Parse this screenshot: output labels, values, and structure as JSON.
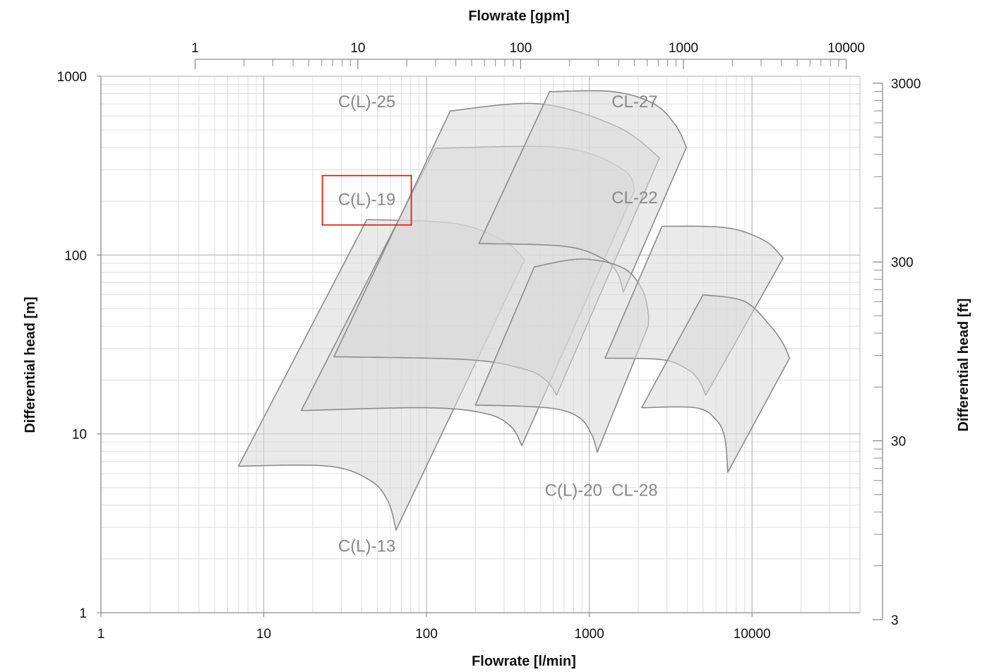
{
  "chart_data": {
    "type": "area",
    "title": "",
    "xlabel": "Flowrate [l/min]",
    "ylabel": "Differential head [m]",
    "x2label": "Flowrate [gpm]",
    "y2label": "Differential head [ft]",
    "xscale": "log",
    "yscale": "log",
    "xlim": [
      1,
      46000
    ],
    "ylim": [
      1,
      1000
    ],
    "x2lim": [
      0.264,
      12150
    ],
    "y2lim": [
      3.28,
      3281
    ],
    "grid": true,
    "x_ticks": [
      1,
      10,
      100,
      1000,
      10000
    ],
    "x_tick_labels": [
      "1",
      "10",
      "100",
      "1000",
      "10000"
    ],
    "y_ticks": [
      1,
      10,
      100,
      1000
    ],
    "y_tick_labels": [
      "1",
      "10",
      "100",
      "1000"
    ],
    "x2_ticks": [
      1,
      10,
      100,
      1000,
      10000
    ],
    "x2_tick_labels": [
      "1",
      "10",
      "100",
      "1000",
      "10000"
    ],
    "y2_ticks": [
      3,
      30,
      300,
      3000
    ],
    "y2_tick_labels": [
      "3",
      "30",
      "300",
      "3000"
    ],
    "fill_color": "#d9d9d9",
    "stroke_color": "#8c8c8c",
    "highlight_color": "#e02020",
    "series": [
      {
        "name": "C(L)-13",
        "label_at": [
          43,
          2.2
        ],
        "curves": [
          [
            [
              7,
              6.6
            ],
            [
              43,
              158
            ]
          ],
          [
            [
              43,
              158
            ],
            [
              150,
              150
            ],
            [
              300,
              120
            ],
            [
              400,
              94
            ]
          ],
          [
            [
              400,
              94
            ],
            [
              65,
              2.9
            ]
          ],
          [
            [
              7,
              6.6
            ],
            [
              25,
              6.6
            ],
            [
              45,
              5.5
            ],
            [
              58,
              4.2
            ],
            [
              65,
              2.9
            ]
          ]
        ]
      },
      {
        "name": "C(L)-19",
        "label_at": [
          43,
          190
        ],
        "highlight": true,
        "curves": [
          [
            [
              17,
              13.5
            ],
            [
              113,
              395
            ]
          ],
          [
            [
              113,
              395
            ],
            [
              500,
              405
            ],
            [
              1000,
              370
            ],
            [
              1700,
              290
            ],
            [
              1900,
              230
            ]
          ],
          [
            [
              1900,
              230
            ],
            [
              385,
              8.6
            ]
          ],
          [
            [
              17,
              13.5
            ],
            [
              100,
              14
            ],
            [
              230,
              13
            ],
            [
              330,
              11
            ],
            [
              385,
              8.6
            ]
          ]
        ]
      },
      {
        "name": "C(L)-25",
        "label_at": [
          43,
          670
        ],
        "curves": [
          [
            [
              27,
              27
            ],
            [
              140,
              640
            ]
          ],
          [
            [
              140,
              640
            ],
            [
              500,
              700
            ],
            [
              1500,
              520
            ],
            [
              2700,
              350
            ]
          ],
          [
            [
              2700,
              350
            ],
            [
              630,
              16.5
            ]
          ],
          [
            [
              27,
              27
            ],
            [
              180,
              26
            ],
            [
              400,
              23
            ],
            [
              540,
              20
            ],
            [
              630,
              16.5
            ]
          ]
        ]
      },
      {
        "name": "CL-27",
        "label_at": [
          1900,
          670
        ],
        "curves": [
          [
            [
              210,
              116
            ],
            [
              570,
              820
            ]
          ],
          [
            [
              570,
              820
            ],
            [
              1400,
              820
            ],
            [
              2500,
              700
            ],
            [
              3400,
              530
            ],
            [
              3950,
              400
            ]
          ],
          [
            [
              3950,
              400
            ],
            [
              1620,
              62
            ]
          ],
          [
            [
              210,
              116
            ],
            [
              700,
              112
            ],
            [
              1200,
              96
            ],
            [
              1480,
              80
            ],
            [
              1620,
              62
            ]
          ]
        ]
      },
      {
        "name": "C(L)-20",
        "label_at": [
          800,
          4.5
        ],
        "curves": [
          [
            [
              200,
              14.5
            ],
            [
              460,
              86
            ]
          ],
          [
            [
              460,
              86
            ],
            [
              900,
              95
            ],
            [
              1600,
              85
            ],
            [
              2100,
              65
            ],
            [
              2300,
              48
            ],
            [
              2300,
              40
            ]
          ],
          [
            [
              2300,
              40
            ],
            [
              1120,
              7.9
            ]
          ],
          [
            [
              200,
              14.5
            ],
            [
              550,
              14
            ],
            [
              850,
              12.5
            ],
            [
              1030,
              10
            ],
            [
              1120,
              7.9
            ]
          ]
        ]
      },
      {
        "name": "CL-22",
        "label_at": [
          1900,
          195
        ],
        "curves": [
          [
            [
              1250,
              26.5
            ],
            [
              2800,
              145
            ]
          ],
          [
            [
              2800,
              145
            ],
            [
              7000,
              142
            ],
            [
              12000,
              120
            ],
            [
              15500,
              96
            ]
          ],
          [
            [
              15500,
              96
            ],
            [
              5200,
              16.5
            ]
          ],
          [
            [
              1250,
              26.5
            ],
            [
              2800,
              26
            ],
            [
              4000,
              23
            ],
            [
              4700,
              20
            ],
            [
              5200,
              16.5
            ]
          ]
        ]
      },
      {
        "name": "CL-28",
        "label_at": [
          1900,
          4.5
        ],
        "curves": [
          [
            [
              2100,
              14
            ],
            [
              5000,
              60
            ]
          ],
          [
            [
              5000,
              60
            ],
            [
              9000,
              55
            ],
            [
              13000,
              40
            ],
            [
              15500,
              32
            ],
            [
              17000,
              26.5
            ]
          ],
          [
            [
              17000,
              26.5
            ],
            [
              7100,
              6.1
            ]
          ],
          [
            [
              2100,
              14
            ],
            [
              4500,
              14
            ],
            [
              6000,
              12
            ],
            [
              6800,
              9.5
            ],
            [
              7100,
              6.1
            ]
          ]
        ]
      }
    ]
  }
}
